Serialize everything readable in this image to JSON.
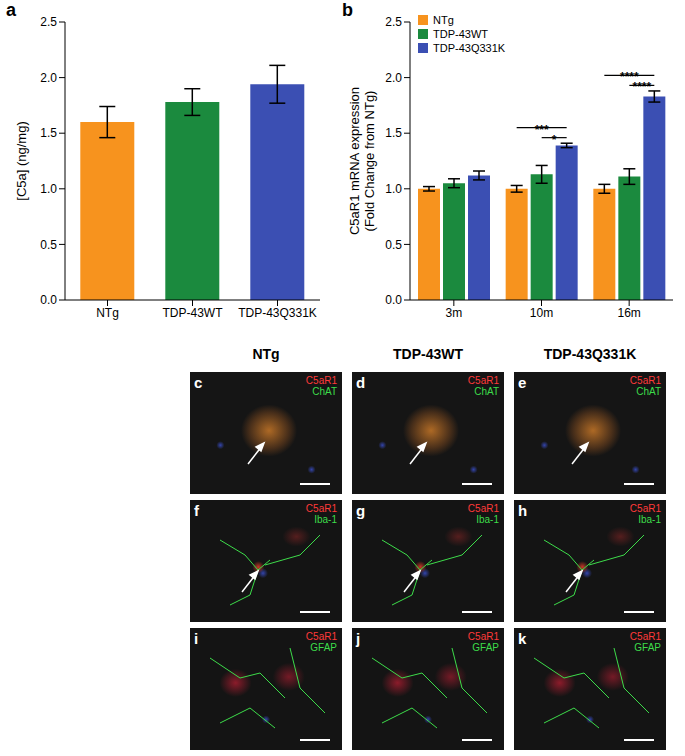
{
  "chart_data": [
    {
      "panel": "a",
      "type": "bar",
      "ylabel": "[C5a] (ng/mg)",
      "categories": [
        "NTg",
        "TDP-43WT",
        "TDP-43Q331K"
      ],
      "values": [
        1.6,
        1.78,
        1.94
      ],
      "errors": [
        0.14,
        0.12,
        0.17
      ],
      "colors": [
        "#f7931e",
        "#1b8a3e",
        "#3b4fb3"
      ],
      "ylim": [
        0,
        2.5
      ],
      "yticks": [
        {
          "value": 0,
          "label": "0.0"
        },
        {
          "value": 0.5,
          "label": "0.5"
        },
        {
          "value": 1,
          "label": "1.0"
        },
        {
          "value": 1.5,
          "label": "1.5"
        },
        {
          "value": 2,
          "label": "2.0"
        },
        {
          "value": 2.5,
          "label": "2.5"
        }
      ]
    },
    {
      "panel": "b",
      "type": "bar",
      "ylabel": [
        "C5aR1 mRNA expression",
        "(Fold Change from NTg)"
      ],
      "categories": [
        "3m",
        "10m",
        "16m"
      ],
      "series": [
        {
          "name": "NTg",
          "color": "#f7931e",
          "values": [
            1.0,
            1.0,
            1.0
          ],
          "errors": [
            0.02,
            0.03,
            0.04
          ]
        },
        {
          "name": "TDP-43WT",
          "color": "#1b8a3e",
          "values": [
            1.05,
            1.13,
            1.11
          ],
          "errors": [
            0.04,
            0.08,
            0.07
          ]
        },
        {
          "name": "TDP-43Q331K",
          "color": "#3b4fb3",
          "values": [
            1.12,
            1.39,
            1.83
          ],
          "errors": [
            0.04,
            0.02,
            0.05
          ]
        }
      ],
      "annotations": [
        {
          "category": "10m",
          "from": "NTg",
          "to": "TDP-43Q331K",
          "y": 1.55,
          "text": "***"
        },
        {
          "category": "10m",
          "from": "TDP-43WT",
          "to": "TDP-43Q331K",
          "y": 1.46,
          "text": "*"
        },
        {
          "category": "16m",
          "from": "NTg",
          "to": "TDP-43Q331K",
          "y": 2.02,
          "text": "****"
        },
        {
          "category": "16m",
          "from": "TDP-43WT",
          "to": "TDP-43Q331K",
          "y": 1.93,
          "text": "****"
        }
      ],
      "legend": "upper left",
      "ylim": [
        0,
        2.5
      ],
      "yticks": [
        {
          "value": 0,
          "label": "0.0"
        },
        {
          "value": 0.5,
          "label": "0.5"
        },
        {
          "value": 1,
          "label": "1.0"
        },
        {
          "value": 1.5,
          "label": "1.5"
        },
        {
          "value": 2,
          "label": "2.0"
        },
        {
          "value": 2.5,
          "label": "2.5"
        }
      ]
    }
  ],
  "image_panels": {
    "columns": [
      "NTg",
      "TDP-43WT",
      "TDP-43Q331K"
    ],
    "rows": [
      {
        "letters": [
          "c",
          "d",
          "e"
        ],
        "stain1": "C5aR1",
        "stain2": "ChAT"
      },
      {
        "letters": [
          "f",
          "g",
          "h"
        ],
        "stain1": "C5aR1",
        "stain2": "Iba-1"
      },
      {
        "letters": [
          "i",
          "j",
          "k"
        ],
        "stain1": "C5aR1",
        "stain2": "GFAP"
      }
    ]
  }
}
